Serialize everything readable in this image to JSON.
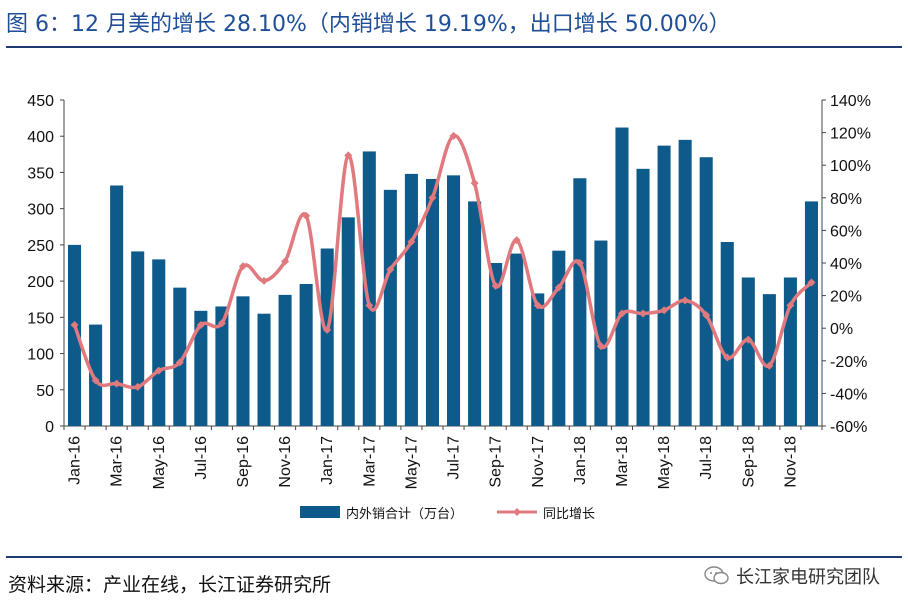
{
  "header": {
    "title": "图 6：12 月美的增长 28.10%（内销增长 19.19%，出口增长 50.00%）"
  },
  "footer": {
    "source": "资料来源：产业在线，长江证券研究所",
    "watermark": "长江家电研究团队"
  },
  "colors": {
    "bar": "#0e5a8a",
    "line": "#e07a7f",
    "title": "#1f4e99",
    "rule": "#1f3a73"
  },
  "icons": {
    "watermark": "wechat-icon"
  },
  "chart_data": {
    "type": "bar",
    "categories": [
      "Jan-16",
      "Feb-16",
      "Mar-16",
      "Apr-16",
      "May-16",
      "Jun-16",
      "Jul-16",
      "Aug-16",
      "Sep-16",
      "Oct-16",
      "Nov-16",
      "Dec-16",
      "Jan-17",
      "Feb-17",
      "Mar-17",
      "Apr-17",
      "May-17",
      "Jun-17",
      "Jul-17",
      "Aug-17",
      "Sep-17",
      "Oct-17",
      "Nov-17",
      "Dec-17",
      "Jan-18",
      "Feb-18",
      "Mar-18",
      "Apr-18",
      "May-18",
      "Jun-18",
      "Jul-18",
      "Aug-18",
      "Sep-18",
      "Oct-18",
      "Nov-18",
      "Dec-18"
    ],
    "x_tick_labels": [
      "Jan-16",
      "Mar-16",
      "May-16",
      "Jul-16",
      "Sep-16",
      "Nov-16",
      "Jan-17",
      "Mar-17",
      "May-17",
      "Jul-17",
      "Sep-17",
      "Nov-17",
      "Jan-18",
      "Mar-18",
      "May-18",
      "Jul-18",
      "Sep-18",
      "Nov-18"
    ],
    "series": [
      {
        "name": "内外销合计（万台）",
        "type": "bar",
        "axis": "left",
        "values": [
          250,
          140,
          332,
          241,
          230,
          191,
          159,
          165,
          179,
          155,
          181,
          196,
          245,
          288,
          379,
          326,
          348,
          341,
          346,
          310,
          225,
          238,
          183,
          242,
          342,
          256,
          412,
          355,
          387,
          395,
          371,
          254,
          205,
          182,
          205,
          310
        ]
      },
      {
        "name": "同比增长",
        "type": "line",
        "axis": "right",
        "values": [
          2,
          -32,
          -34,
          -36,
          -26,
          -21,
          2,
          3,
          38,
          29,
          41,
          69,
          -1,
          106,
          14,
          36,
          53,
          80,
          118,
          89,
          26,
          54,
          14,
          25,
          40,
          -11,
          9,
          9,
          11,
          17,
          8,
          -18,
          -7,
          -23,
          14,
          28
        ]
      }
    ],
    "y_left": {
      "ylim": [
        0,
        450
      ],
      "ticks": [
        0,
        50,
        100,
        150,
        200,
        250,
        300,
        350,
        400,
        450
      ]
    },
    "y_right": {
      "ylim": [
        -60,
        140
      ],
      "ticks": [
        "-60%",
        "-40%",
        "-20%",
        "0%",
        "20%",
        "40%",
        "60%",
        "80%",
        "100%",
        "120%",
        "140%"
      ]
    },
    "legend": {
      "position": "bottom"
    },
    "grid": false
  }
}
